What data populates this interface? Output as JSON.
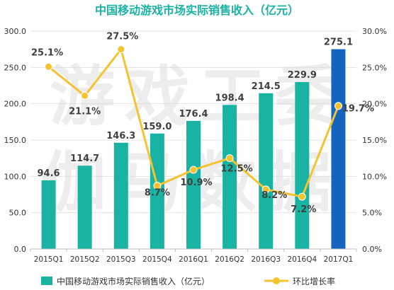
{
  "chart_data": {
    "type": "bar+line",
    "title": "中国移动游戏市场实际销售收入（亿元）",
    "watermark": [
      "游戏工委",
      "伽马数据"
    ],
    "categories": [
      "2015Q1",
      "2015Q2",
      "2015Q3",
      "2015Q4",
      "2016Q1",
      "2016Q2",
      "2016Q3",
      "2016Q4",
      "2017Q1"
    ],
    "series": [
      {
        "name": "中国移动游戏市场实际销售收入（亿元）",
        "type": "bar",
        "axis": "left",
        "values": [
          94.6,
          114.7,
          146.3,
          159.0,
          176.4,
          198.4,
          214.5,
          229.9,
          275.1
        ],
        "labels": [
          "94.6",
          "114.7",
          "146.3",
          "159.0",
          "176.4",
          "198.4",
          "214.5",
          "229.9",
          "275.1"
        ],
        "color": "#19b3a3",
        "highlight_color": "#1565c0",
        "highlight_index": 8
      },
      {
        "name": "环比增长率",
        "type": "line",
        "axis": "right",
        "values": [
          25.1,
          21.1,
          27.5,
          8.7,
          10.9,
          12.5,
          8.2,
          7.2,
          19.7
        ],
        "labels": [
          "25.1%",
          "21.1%",
          "27.5%",
          "8.7%",
          "10.9%",
          "12.5%",
          "8.2%",
          "7.2%",
          "19.7%"
        ],
        "color": "#f5c330"
      }
    ],
    "y_left": {
      "min": 0,
      "max": 300,
      "ticks": [
        "0.0",
        "50.0",
        "100.0",
        "150.0",
        "200.0",
        "250.0",
        "300.0"
      ]
    },
    "y_right": {
      "min": 0,
      "max": 30,
      "ticks": [
        "0.0%",
        "5.0%",
        "10.0%",
        "15.0%",
        "20.0%",
        "25.0%",
        "30.0%"
      ]
    },
    "grid": true,
    "legend_position": "bottom"
  }
}
